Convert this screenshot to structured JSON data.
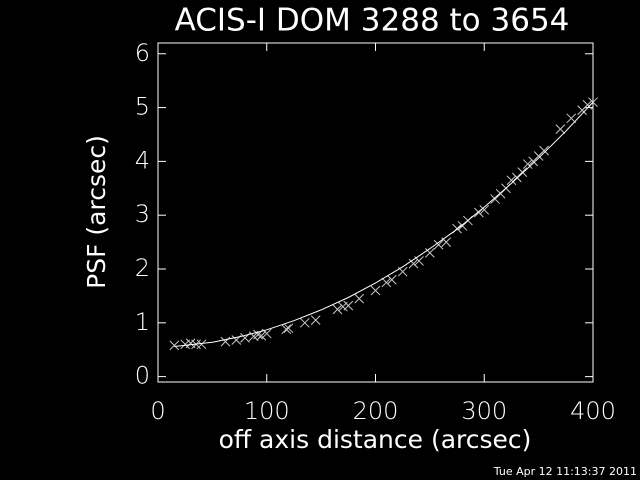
{
  "chart_data": {
    "type": "scatter",
    "title": "ACIS-I DOM 3288 to 3654",
    "x_label": "off axis distance (arcsec)",
    "y_label": "PSF (arcsec)",
    "xlim": [
      0,
      400
    ],
    "xticks": [
      0,
      100,
      200,
      300,
      400
    ],
    "ylim": [
      -0.1,
      6.2
    ],
    "yticks": [
      0,
      1,
      2,
      3,
      4,
      5,
      6
    ],
    "series": [
      {
        "mode": "markers",
        "color": "#c8c8c8",
        "x": [
          15,
          25,
          30,
          35,
          40,
          62,
          72,
          80,
          88,
          92,
          95,
          100,
          118,
          120,
          135,
          145,
          165,
          170,
          175,
          185,
          200,
          210,
          215,
          225,
          235,
          240,
          250,
          258,
          265,
          275,
          280,
          285,
          295,
          300,
          310,
          315,
          320,
          325,
          330,
          335,
          340,
          345,
          350,
          355,
          370,
          380,
          390,
          395,
          400
        ],
        "values": [
          0.58,
          0.6,
          0.62,
          0.6,
          0.6,
          0.65,
          0.68,
          0.72,
          0.75,
          0.78,
          0.76,
          0.8,
          0.88,
          0.9,
          1.0,
          1.05,
          1.25,
          1.3,
          1.32,
          1.45,
          1.6,
          1.75,
          1.8,
          1.95,
          2.1,
          2.15,
          2.3,
          2.45,
          2.5,
          2.75,
          2.8,
          2.9,
          3.05,
          3.1,
          3.3,
          3.4,
          3.5,
          3.65,
          3.7,
          3.8,
          3.95,
          4.0,
          4.1,
          4.2,
          4.6,
          4.8,
          4.95,
          5.05,
          5.1
        ]
      },
      {
        "mode": "line",
        "color": "#ffffff",
        "x": [
          15,
          50,
          75,
          100,
          125,
          150,
          175,
          200,
          225,
          250,
          275,
          300,
          325,
          350,
          375,
          400
        ],
        "values": [
          0.56,
          0.64,
          0.74,
          0.87,
          1.04,
          1.24,
          1.47,
          1.74,
          2.04,
          2.38,
          2.74,
          3.15,
          3.59,
          4.06,
          4.56,
          5.1
        ]
      }
    ]
  },
  "timestamp": "Tue Apr 12 11:13:37 2011"
}
